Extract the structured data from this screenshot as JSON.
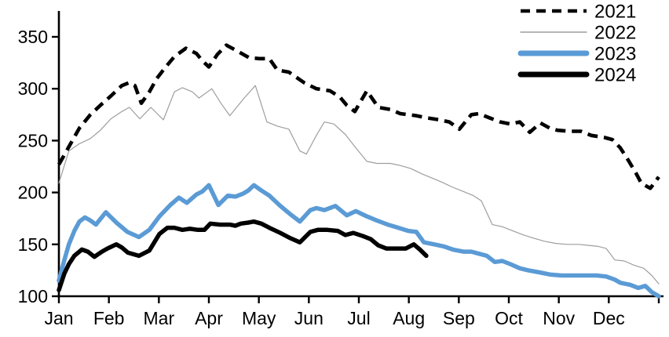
{
  "chart_data": {
    "type": "line",
    "title": "",
    "x_axis": {
      "label": "",
      "tick_labels": [
        "Jan",
        "Feb",
        "Mar",
        "Apr",
        "May",
        "Jun",
        "Jul",
        "Aug",
        "Sep",
        "Oct",
        "Nov",
        "Dec"
      ],
      "x_unit": "month_index (0 = start of Jan, 12 = end of Dec)",
      "range": [
        0,
        12
      ],
      "extra_end_tick": true
    },
    "y_axis": {
      "label": "",
      "ticks": [
        100,
        150,
        200,
        250,
        300,
        350
      ],
      "range": [
        100,
        350
      ]
    },
    "grid": "off",
    "legend": {
      "position": "top-right",
      "entries": [
        {
          "label": "2021"
        },
        {
          "label": "2022"
        },
        {
          "label": "2023"
        },
        {
          "label": "2024"
        }
      ]
    },
    "colors": {
      "black": "#000000",
      "gray": "#9e9e9e",
      "blue": "#5b9bd5"
    },
    "series": [
      {
        "name": "2021",
        "color": "#000000",
        "style": "dashed",
        "width": 4.6,
        "points": [
          [
            0,
            227
          ],
          [
            0.2,
            244
          ],
          [
            0.41,
            262
          ],
          [
            0.63,
            275
          ],
          [
            0.83,
            284
          ],
          [
            1.04,
            293
          ],
          [
            1.26,
            303
          ],
          [
            1.41,
            306
          ],
          [
            1.52,
            303
          ],
          [
            1.65,
            286
          ],
          [
            1.81,
            297
          ],
          [
            1.96,
            310
          ],
          [
            2.12,
            320
          ],
          [
            2.31,
            331
          ],
          [
            2.54,
            339
          ],
          [
            2.75,
            334
          ],
          [
            2.87,
            327
          ],
          [
            3.0,
            321
          ],
          [
            3.17,
            333
          ],
          [
            3.35,
            342
          ],
          [
            3.58,
            336
          ],
          [
            3.8,
            330
          ],
          [
            4.01,
            329
          ],
          [
            4.21,
            329
          ],
          [
            4.37,
            318
          ],
          [
            4.6,
            316
          ],
          [
            4.9,
            306
          ],
          [
            5.15,
            300
          ],
          [
            5.42,
            298
          ],
          [
            5.62,
            292
          ],
          [
            5.76,
            284
          ],
          [
            5.92,
            278
          ],
          [
            6.16,
            298
          ],
          [
            6.39,
            282
          ],
          [
            6.63,
            280
          ],
          [
            6.83,
            276
          ],
          [
            7.15,
            274
          ],
          [
            7.35,
            272
          ],
          [
            7.62,
            270
          ],
          [
            7.81,
            268
          ],
          [
            8.01,
            261
          ],
          [
            8.25,
            275
          ],
          [
            8.4,
            276
          ],
          [
            8.61,
            272
          ],
          [
            8.83,
            268
          ],
          [
            9.03,
            266
          ],
          [
            9.22,
            268
          ],
          [
            9.42,
            258
          ],
          [
            9.63,
            267
          ],
          [
            9.82,
            262
          ],
          [
            9.97,
            260
          ],
          [
            10.21,
            259
          ],
          [
            10.44,
            259
          ],
          [
            10.65,
            255
          ],
          [
            10.91,
            253
          ],
          [
            11.07,
            251
          ],
          [
            11.23,
            243
          ],
          [
            11.39,
            231
          ],
          [
            11.54,
            219
          ],
          [
            11.65,
            209
          ],
          [
            11.83,
            204
          ],
          [
            12,
            215
          ]
        ]
      },
      {
        "name": "2022",
        "color": "#9e9e9e",
        "style": "solid",
        "width": 1.2,
        "points": [
          [
            0,
            209
          ],
          [
            0.2,
            240
          ],
          [
            0.41,
            247
          ],
          [
            0.63,
            252
          ],
          [
            0.83,
            260
          ],
          [
            1.04,
            271
          ],
          [
            1.26,
            278
          ],
          [
            1.41,
            282
          ],
          [
            1.62,
            271
          ],
          [
            1.84,
            282
          ],
          [
            2.09,
            270
          ],
          [
            2.31,
            297
          ],
          [
            2.47,
            301
          ],
          [
            2.67,
            297
          ],
          [
            2.8,
            291
          ],
          [
            3.06,
            300
          ],
          [
            3.24,
            286
          ],
          [
            3.42,
            274
          ],
          [
            3.69,
            290
          ],
          [
            3.93,
            303
          ],
          [
            4.16,
            268
          ],
          [
            4.37,
            264
          ],
          [
            4.6,
            261
          ],
          [
            4.82,
            240
          ],
          [
            4.95,
            237
          ],
          [
            5.15,
            255
          ],
          [
            5.31,
            268
          ],
          [
            5.5,
            266
          ],
          [
            5.73,
            256
          ],
          [
            5.94,
            243
          ],
          [
            6.16,
            230
          ],
          [
            6.36,
            228
          ],
          [
            6.63,
            228
          ],
          [
            6.83,
            226
          ],
          [
            7.04,
            223
          ],
          [
            7.26,
            218
          ],
          [
            7.46,
            214
          ],
          [
            7.66,
            210
          ],
          [
            7.88,
            205
          ],
          [
            8.09,
            201
          ],
          [
            8.29,
            197
          ],
          [
            8.45,
            192
          ],
          [
            8.67,
            169
          ],
          [
            8.87,
            167
          ],
          [
            9.08,
            163
          ],
          [
            9.3,
            159
          ],
          [
            9.5,
            156
          ],
          [
            9.71,
            153
          ],
          [
            9.93,
            151
          ],
          [
            10.16,
            150
          ],
          [
            10.4,
            150
          ],
          [
            10.6,
            149
          ],
          [
            10.79,
            148
          ],
          [
            10.95,
            146
          ],
          [
            11.12,
            135
          ],
          [
            11.31,
            134
          ],
          [
            11.5,
            130
          ],
          [
            11.7,
            127
          ],
          [
            11.86,
            120
          ],
          [
            12,
            112
          ]
        ]
      },
      {
        "name": "2023",
        "color": "#5b9bd5",
        "style": "solid",
        "width": 5.5,
        "points": [
          [
            0,
            115
          ],
          [
            0.11,
            135
          ],
          [
            0.2,
            150
          ],
          [
            0.31,
            163
          ],
          [
            0.41,
            172
          ],
          [
            0.52,
            176
          ],
          [
            0.63,
            173
          ],
          [
            0.74,
            169
          ],
          [
            0.94,
            181
          ],
          [
            1.15,
            171
          ],
          [
            1.37,
            162
          ],
          [
            1.6,
            157
          ],
          [
            1.81,
            164
          ],
          [
            2.01,
            177
          ],
          [
            2.23,
            188
          ],
          [
            2.4,
            195
          ],
          [
            2.56,
            190
          ],
          [
            2.75,
            198
          ],
          [
            2.87,
            201
          ],
          [
            3.0,
            207
          ],
          [
            3.19,
            188
          ],
          [
            3.38,
            197
          ],
          [
            3.53,
            196
          ],
          [
            3.69,
            199
          ],
          [
            3.79,
            202
          ],
          [
            3.9,
            207
          ],
          [
            4.05,
            202
          ],
          [
            4.21,
            197
          ],
          [
            4.43,
            187
          ],
          [
            4.63,
            179
          ],
          [
            4.82,
            172
          ],
          [
            5.03,
            183
          ],
          [
            5.15,
            185
          ],
          [
            5.31,
            183
          ],
          [
            5.53,
            187
          ],
          [
            5.76,
            178
          ],
          [
            5.94,
            182
          ],
          [
            6.16,
            177
          ],
          [
            6.36,
            173
          ],
          [
            6.58,
            169
          ],
          [
            6.79,
            166
          ],
          [
            6.99,
            163
          ],
          [
            7.15,
            162
          ],
          [
            7.3,
            152
          ],
          [
            7.51,
            150
          ],
          [
            7.7,
            148
          ],
          [
            7.88,
            145
          ],
          [
            8.09,
            143
          ],
          [
            8.25,
            143
          ],
          [
            8.4,
            141
          ],
          [
            8.56,
            139
          ],
          [
            8.72,
            133
          ],
          [
            8.87,
            134
          ],
          [
            9.03,
            131
          ],
          [
            9.22,
            127
          ],
          [
            9.39,
            125
          ],
          [
            9.61,
            123
          ],
          [
            9.82,
            121
          ],
          [
            10.05,
            120
          ],
          [
            10.29,
            120
          ],
          [
            10.52,
            120
          ],
          [
            10.76,
            120
          ],
          [
            10.95,
            119
          ],
          [
            11.12,
            116
          ],
          [
            11.23,
            113
          ],
          [
            11.43,
            111
          ],
          [
            11.59,
            108
          ],
          [
            11.73,
            110
          ],
          [
            11.86,
            104
          ],
          [
            12,
            100
          ]
        ]
      },
      {
        "name": "2024",
        "color": "#000000",
        "style": "solid",
        "width": 5.5,
        "points": [
          [
            0,
            106
          ],
          [
            0.11,
            122
          ],
          [
            0.2,
            131
          ],
          [
            0.31,
            139
          ],
          [
            0.46,
            145
          ],
          [
            0.58,
            143
          ],
          [
            0.71,
            138
          ],
          [
            0.86,
            143
          ],
          [
            0.97,
            146
          ],
          [
            1.15,
            150
          ],
          [
            1.26,
            147
          ],
          [
            1.38,
            142
          ],
          [
            1.6,
            139
          ],
          [
            1.81,
            144
          ],
          [
            2.01,
            160
          ],
          [
            2.17,
            166
          ],
          [
            2.31,
            166
          ],
          [
            2.47,
            164
          ],
          [
            2.62,
            165
          ],
          [
            2.78,
            164
          ],
          [
            2.91,
            164
          ],
          [
            3.03,
            170
          ],
          [
            3.22,
            169
          ],
          [
            3.42,
            169
          ],
          [
            3.53,
            168
          ],
          [
            3.64,
            170
          ],
          [
            3.79,
            171
          ],
          [
            3.9,
            172
          ],
          [
            4.05,
            170
          ],
          [
            4.21,
            166
          ],
          [
            4.43,
            161
          ],
          [
            4.63,
            156
          ],
          [
            4.82,
            152
          ],
          [
            5.03,
            162
          ],
          [
            5.18,
            164
          ],
          [
            5.37,
            164
          ],
          [
            5.58,
            163
          ],
          [
            5.73,
            159
          ],
          [
            5.89,
            161
          ],
          [
            6.08,
            158
          ],
          [
            6.24,
            155
          ],
          [
            6.39,
            149
          ],
          [
            6.55,
            146
          ],
          [
            6.75,
            146
          ],
          [
            6.94,
            146
          ],
          [
            7.1,
            150
          ],
          [
            7.22,
            145
          ],
          [
            7.35,
            139
          ]
        ]
      }
    ]
  }
}
